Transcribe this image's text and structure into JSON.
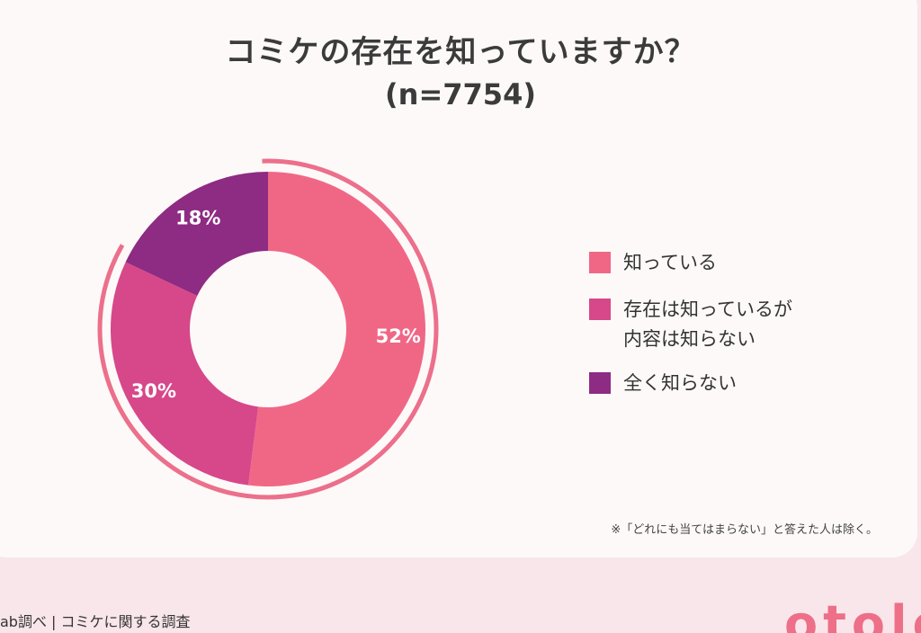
{
  "title": "コミケの存在を知っていますか？",
  "subtitle": "(n=7754)",
  "chart_data": {
    "type": "pie",
    "title": "コミケの存在を知っていますか？",
    "subtitle": "(n=7754)",
    "slices": [
      {
        "label": "知っている",
        "value": 52,
        "display": "52%",
        "color": "#f06786"
      },
      {
        "label": "存在は知っているが\n内容は知らない",
        "value": 30,
        "display": "30%",
        "color": "#d6488a"
      },
      {
        "label": "全く知らない",
        "value": 18,
        "display": "18%",
        "color": "#8e2b83"
      }
    ],
    "legend_position": "right",
    "donut": true
  },
  "note": "※「どれにも当てはまらない」と答えた人は除く。",
  "footer": {
    "source": "ab調べ | コミケに関する調査",
    "logo": "otolo"
  }
}
